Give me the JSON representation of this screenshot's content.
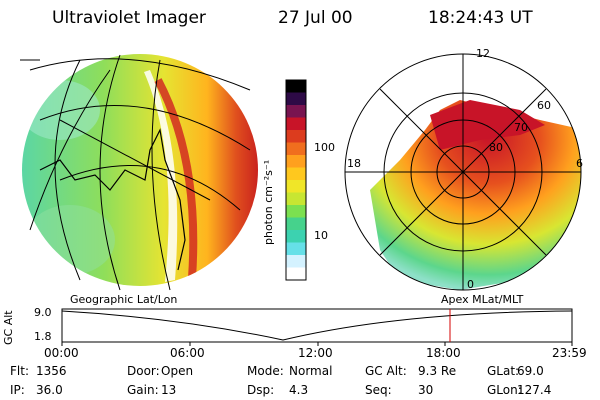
{
  "header": {
    "instrument": "Ultraviolet Imager",
    "date": "27 Jul 00",
    "time": "18:24:43 UT"
  },
  "geo_map": {
    "projection_label": "Geographic Lat/Lon"
  },
  "polar_map": {
    "projection_label": "Apex MLat/MLT",
    "mlt_labels": [
      "12",
      "18",
      "6",
      "0"
    ],
    "mlat_labels": [
      "60",
      "70",
      "80"
    ]
  },
  "colorbar": {
    "unit_label": "photon cm⁻²s⁻¹",
    "ticks": [
      "100",
      "10"
    ],
    "colors": [
      "#ffffff",
      "#d4f2ff",
      "#66e0e8",
      "#3cd2b0",
      "#46d28c",
      "#7ce050",
      "#c8e632",
      "#f0e628",
      "#ffc81e",
      "#ffa01e",
      "#f06e1e",
      "#dc3c1e",
      "#c81428",
      "#781450",
      "#2d0a46",
      "#000000"
    ]
  },
  "altitude_plot": {
    "axis_label": "GC Alt",
    "y_ticks": [
      "9.0",
      "1.8"
    ],
    "x_ticks": [
      "00:00",
      "06:00",
      "12:00",
      "18:00",
      "23:59"
    ],
    "current_time_marker_color": "#d40000"
  },
  "status": [
    [
      {
        "label": "Flt:",
        "value": "1356"
      },
      {
        "label": "Door:",
        "value": "Open"
      },
      {
        "label": "Mode:",
        "value": "Normal"
      },
      {
        "label": "GC Alt:",
        "value": "9.3 Re"
      },
      {
        "label": "GLat:",
        "value": "69.0"
      }
    ],
    [
      {
        "label": "IP:",
        "value": "36.0"
      },
      {
        "label": "Gain:",
        "value": "13"
      },
      {
        "label": "Dsp:",
        "value": "4.3"
      },
      {
        "label": "Seq:",
        "value": "30"
      },
      {
        "label": "GLon:",
        "value": "127.4"
      }
    ]
  ]
}
